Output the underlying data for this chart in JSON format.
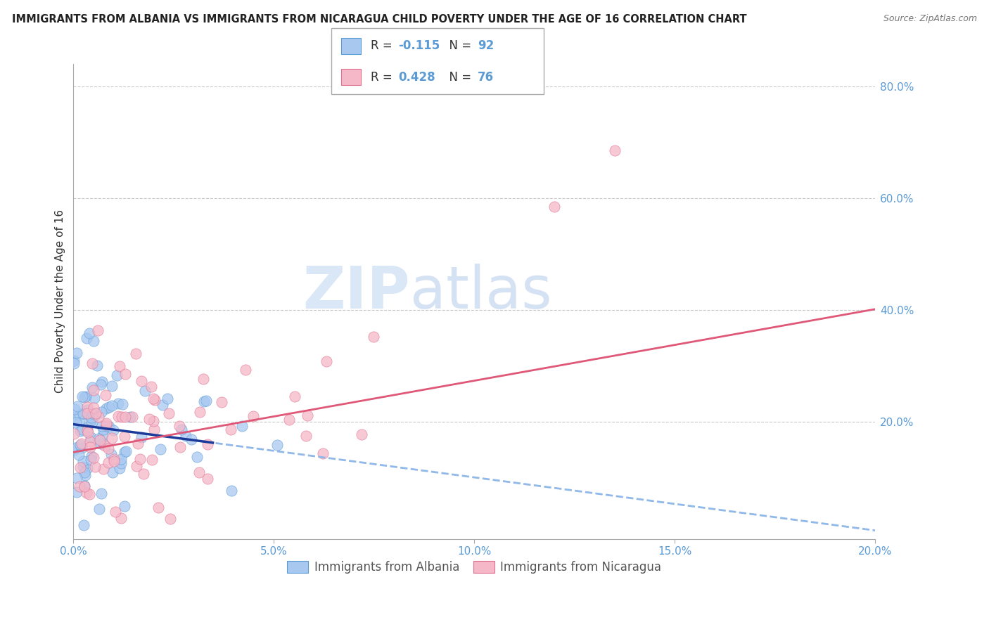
{
  "title": "IMMIGRANTS FROM ALBANIA VS IMMIGRANTS FROM NICARAGUA CHILD POVERTY UNDER THE AGE OF 16 CORRELATION CHART",
  "source": "Source: ZipAtlas.com",
  "ylabel": "Child Poverty Under the Age of 16",
  "xlim": [
    0.0,
    0.2
  ],
  "ylim": [
    -0.01,
    0.84
  ],
  "xticks": [
    0.0,
    0.05,
    0.1,
    0.15,
    0.2
  ],
  "xticklabels": [
    "0.0%",
    "5.0%",
    "10.0%",
    "15.0%",
    "20.0%"
  ],
  "yticks": [
    0.0,
    0.2,
    0.4,
    0.6,
    0.8
  ],
  "yticklabels": [
    "",
    "20.0%",
    "40.0%",
    "60.0%",
    "80.0%"
  ],
  "albania_color": "#a8c8f0",
  "albania_edge_color": "#5b9bd5",
  "nicaragua_color": "#f4b8c8",
  "nicaragua_edge_color": "#e07090",
  "albania_R": -0.115,
  "albania_N": 92,
  "nicaragua_R": 0.428,
  "nicaragua_N": 76,
  "albania_label": "Immigrants from Albania",
  "nicaragua_label": "Immigrants from Nicaragua",
  "watermark_zip": "ZIP",
  "watermark_atlas": "atlas",
  "grid_color": "#c8c8c8",
  "tick_color": "#5b9bd5",
  "background_color": "#ffffff",
  "alb_trend_solid_color": "#1a3a9a",
  "alb_trend_dash_color": "#90b8e8",
  "nic_trend_color": "#e05878",
  "legend_r_color": "#5b9bd5",
  "legend_n_color": "#5b9bd5"
}
